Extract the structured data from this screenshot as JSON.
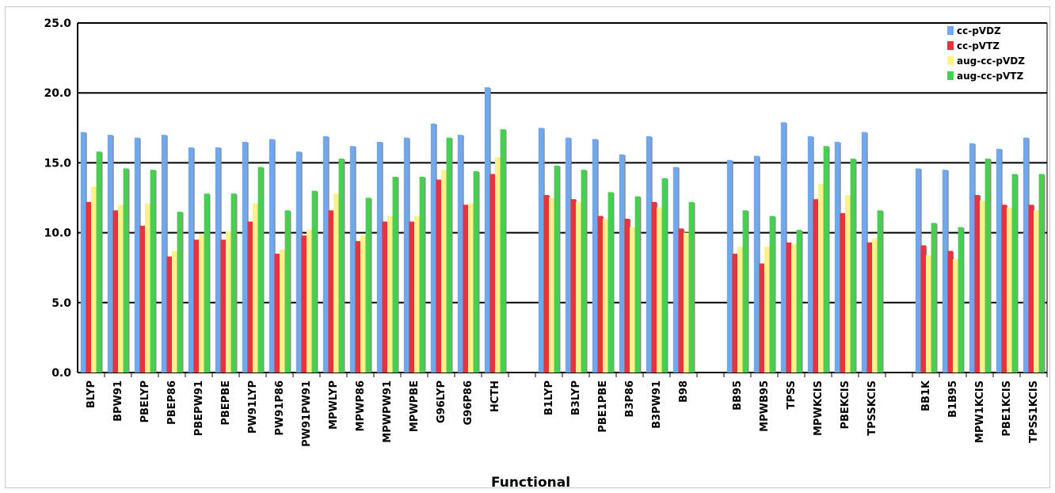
{
  "chart_data": {
    "type": "bar",
    "title": "",
    "xlabel": "Functional",
    "ylabel": "",
    "ylim": [
      0,
      25
    ],
    "yticks": [
      "0.0",
      "5.0",
      "10.0",
      "15.0",
      "20.0",
      "25.0"
    ],
    "grid": "horizontal",
    "legend_position": "top-right",
    "categories": [
      "BLYP",
      "BPW91",
      "PBELYP",
      "PBEP86",
      "PBEPW91",
      "PBEPBE",
      "PW91LYP",
      "PW91P86",
      "PW91PW91",
      "MPWLYP",
      "MPWP86",
      "MPWPW91",
      "MPWPBE",
      "G96LYP",
      "G96P86",
      "HCTH",
      "",
      "B1LYP",
      "B3LYP",
      "PBE1PBE",
      "B3P86",
      "B3PW91",
      "B98",
      "",
      "BB95",
      "MPWB95",
      "TPSS",
      "MPWKCIS",
      "PBEKCIS",
      "TPSSKCIS",
      "",
      "BB1K",
      "B1B95",
      "MPW1KCIS",
      "PBE1KCIS",
      "TPSS1KCIS"
    ],
    "series": [
      {
        "name": "cc-pVDZ",
        "color": "#6fa8ef",
        "values": [
          17.2,
          17.0,
          16.8,
          17.0,
          16.1,
          16.1,
          16.5,
          16.7,
          15.8,
          16.9,
          16.2,
          16.5,
          16.8,
          17.8,
          17.0,
          20.4,
          null,
          17.5,
          16.8,
          16.7,
          15.6,
          16.9,
          14.7,
          null,
          15.2,
          15.5,
          17.9,
          16.9,
          16.5,
          17.2,
          null,
          14.6,
          14.5,
          16.4,
          16.0,
          16.8
        ]
      },
      {
        "name": "cc-pVTZ",
        "color": "#e8333c",
        "values": [
          12.2,
          11.6,
          10.5,
          8.3,
          9.5,
          9.5,
          10.8,
          8.5,
          9.8,
          11.6,
          9.4,
          10.8,
          10.8,
          13.8,
          12.0,
          14.2,
          null,
          12.7,
          12.4,
          11.2,
          11.0,
          12.2,
          10.3,
          null,
          8.5,
          7.8,
          9.3,
          12.4,
          11.4,
          9.3,
          null,
          9.1,
          8.7,
          12.7,
          12.0,
          12.0
        ]
      },
      {
        "name": "aug-cc-pVDZ",
        "color": "#fff28a",
        "values": [
          13.3,
          12.0,
          12.1,
          8.7,
          9.9,
          10.1,
          12.1,
          8.8,
          10.2,
          12.8,
          9.8,
          11.2,
          11.2,
          14.5,
          12.1,
          15.4,
          null,
          12.5,
          12.2,
          11.0,
          10.4,
          11.8,
          10.0,
          null,
          9.0,
          9.0,
          9.2,
          13.5,
          12.7,
          9.6,
          null,
          8.4,
          8.1,
          12.3,
          11.8,
          11.6
        ]
      },
      {
        "name": "aug-cc-pVTZ",
        "color": "#45d14f",
        "values": [
          15.8,
          14.6,
          14.5,
          11.5,
          12.8,
          12.8,
          14.7,
          11.6,
          13.0,
          15.3,
          12.5,
          14.0,
          14.0,
          16.8,
          14.4,
          17.4,
          null,
          14.8,
          14.5,
          12.9,
          12.6,
          13.9,
          12.2,
          null,
          11.6,
          11.2,
          10.2,
          16.2,
          15.3,
          11.6,
          null,
          10.7,
          10.4,
          15.3,
          14.2,
          14.2
        ]
      }
    ]
  }
}
